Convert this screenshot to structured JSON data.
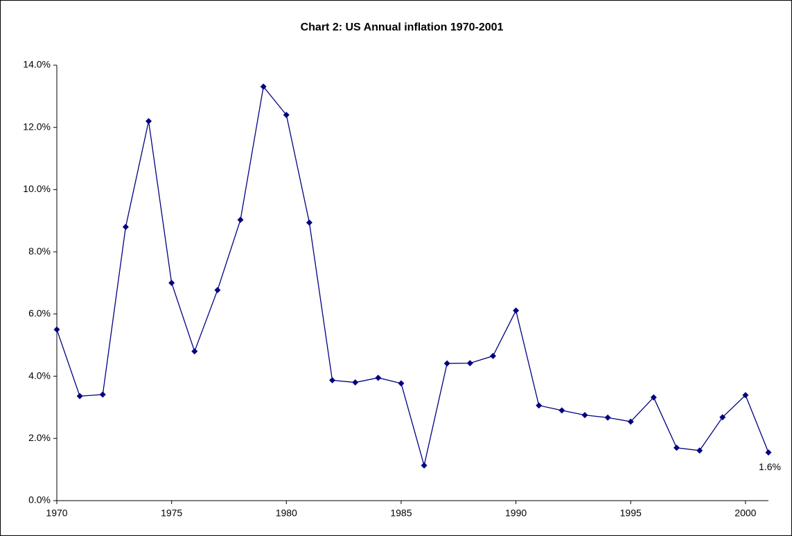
{
  "chart_data": {
    "type": "line",
    "title": "Chart 2: US Annual inflation 1970-2001",
    "x": [
      1970,
      1971,
      1972,
      1973,
      1974,
      1975,
      1976,
      1977,
      1978,
      1979,
      1980,
      1981,
      1982,
      1983,
      1984,
      1985,
      1986,
      1987,
      1988,
      1989,
      1990,
      1991,
      1992,
      1993,
      1994,
      1995,
      1996,
      1997,
      1998,
      1999,
      2000,
      2001
    ],
    "series": [
      {
        "name": "US Annual inflation",
        "color": "#000080",
        "values": [
          5.5,
          3.36,
          3.41,
          8.8,
          12.2,
          7.0,
          4.8,
          6.77,
          9.03,
          13.31,
          12.4,
          8.94,
          3.87,
          3.8,
          3.95,
          3.77,
          1.13,
          4.41,
          4.42,
          4.65,
          6.11,
          3.06,
          2.9,
          2.75,
          2.67,
          2.54,
          3.32,
          1.7,
          1.61,
          2.68,
          3.39,
          1.55
        ],
        "value_labels": [
          null,
          null,
          null,
          null,
          null,
          null,
          null,
          null,
          null,
          null,
          null,
          null,
          null,
          null,
          null,
          null,
          null,
          null,
          null,
          null,
          null,
          null,
          null,
          null,
          null,
          null,
          null,
          null,
          null,
          null,
          null,
          "1.6%"
        ]
      }
    ],
    "xlim": [
      1970,
      2001
    ],
    "xticks": [
      1970,
      1975,
      1980,
      1985,
      1990,
      1995,
      2000
    ],
    "ylim": [
      0,
      14
    ],
    "yticks": [
      {
        "value": 0,
        "label": "0.0%"
      },
      {
        "value": 2,
        "label": "2.0%"
      },
      {
        "value": 4,
        "label": "4.0%"
      },
      {
        "value": 6,
        "label": "6.0%"
      },
      {
        "value": 8,
        "label": "8.0%"
      },
      {
        "value": 10,
        "label": "10.0%"
      },
      {
        "value": 12,
        "label": "12.0%"
      },
      {
        "value": 14,
        "label": "14.0%"
      }
    ],
    "grid": false
  }
}
